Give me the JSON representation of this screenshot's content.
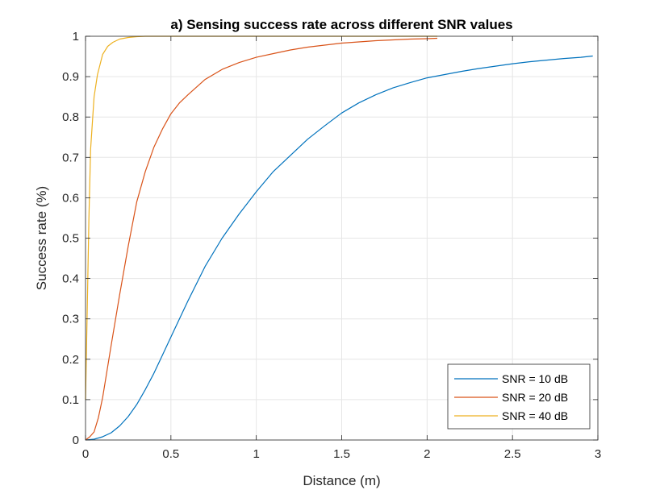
{
  "chart_data": {
    "type": "line",
    "title": "a) Sensing success rate across different SNR values",
    "xlabel": "Distance (m)",
    "ylabel": "Success rate (%)",
    "xlim": [
      0,
      3
    ],
    "ylim": [
      0,
      1
    ],
    "grid": true,
    "legend_position": "bottom-right",
    "xticks": [
      0,
      0.5,
      1,
      1.5,
      2,
      2.5,
      3
    ],
    "xtick_labels": [
      "0",
      "0.5",
      "1",
      "1.5",
      "2",
      "2.5",
      "3"
    ],
    "yticks": [
      0,
      0.1,
      0.2,
      0.3,
      0.4,
      0.5,
      0.6,
      0.7,
      0.8,
      0.9,
      1
    ],
    "ytick_labels": [
      "0",
      "0.1",
      "0.2",
      "0.3",
      "0.4",
      "0.5",
      "0.6",
      "0.7",
      "0.8",
      "0.9",
      "1"
    ],
    "series": [
      {
        "name": "SNR = 10 dB",
        "color": "#0072BD",
        "x": [
          0,
          0.05,
          0.1,
          0.15,
          0.2,
          0.25,
          0.3,
          0.35,
          0.4,
          0.45,
          0.5,
          0.6,
          0.7,
          0.8,
          0.9,
          1.0,
          1.1,
          1.2,
          1.3,
          1.4,
          1.5,
          1.6,
          1.7,
          1.8,
          1.9,
          2.0,
          2.1,
          2.2,
          2.3,
          2.4,
          2.5,
          2.6,
          2.7,
          2.8,
          2.9,
          2.97
        ],
        "values": [
          0,
          0.002,
          0.008,
          0.018,
          0.035,
          0.058,
          0.088,
          0.125,
          0.165,
          0.21,
          0.255,
          0.345,
          0.43,
          0.5,
          0.56,
          0.615,
          0.665,
          0.705,
          0.745,
          0.778,
          0.81,
          0.835,
          0.855,
          0.872,
          0.885,
          0.897,
          0.905,
          0.913,
          0.92,
          0.926,
          0.932,
          0.937,
          0.941,
          0.945,
          0.948,
          0.951
        ]
      },
      {
        "name": "SNR = 20 dB",
        "color": "#D95319",
        "x": [
          0,
          0.025,
          0.05,
          0.075,
          0.1,
          0.125,
          0.15,
          0.2,
          0.25,
          0.3,
          0.35,
          0.4,
          0.45,
          0.5,
          0.55,
          0.6,
          0.7,
          0.8,
          0.9,
          1.0,
          1.1,
          1.2,
          1.3,
          1.4,
          1.5,
          1.6,
          1.7,
          1.8,
          1.9,
          2.0,
          2.06
        ],
        "values": [
          0,
          0.008,
          0.02,
          0.055,
          0.105,
          0.17,
          0.235,
          0.36,
          0.48,
          0.59,
          0.665,
          0.725,
          0.77,
          0.808,
          0.835,
          0.855,
          0.893,
          0.918,
          0.935,
          0.948,
          0.957,
          0.966,
          0.973,
          0.978,
          0.983,
          0.986,
          0.989,
          0.991,
          0.993,
          0.994,
          0.995
        ]
      },
      {
        "name": "SNR = 40 dB",
        "color": "#EDB120",
        "x": [
          0,
          0.01,
          0.02,
          0.03,
          0.05,
          0.07,
          0.1,
          0.13,
          0.16,
          0.2,
          0.25,
          0.3,
          0.35,
          0.4,
          0.6,
          1.0,
          1.5,
          2.0,
          2.06
        ],
        "values": [
          0.1,
          0.32,
          0.55,
          0.72,
          0.85,
          0.905,
          0.955,
          0.975,
          0.985,
          0.993,
          0.997,
          0.999,
          1.0,
          1.0,
          1.0,
          1.0,
          1.0,
          1.0,
          1.0
        ]
      }
    ]
  }
}
